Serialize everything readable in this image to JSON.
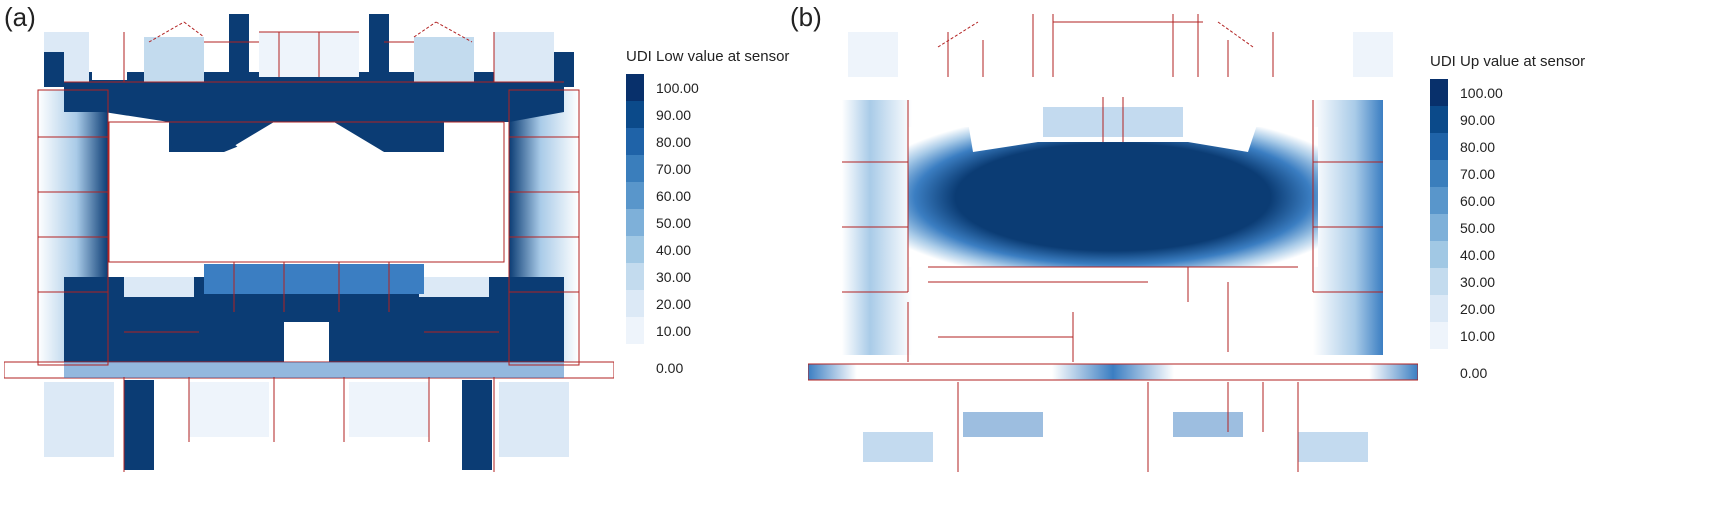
{
  "panel_a": {
    "label": "(a)",
    "legend_title": "UDI Low value at sensor"
  },
  "panel_b": {
    "label": "(b)",
    "legend_title": "UDI Up value at sensor"
  },
  "legend_ticks": [
    "100.00",
    "90.00",
    "80.00",
    "70.00",
    "60.00",
    "50.00",
    "40.00",
    "30.00",
    "20.00",
    "10.00",
    "0.00"
  ],
  "legend_colors": [
    "#08306b",
    "#0b4a8a",
    "#1f63a8",
    "#3a7ebc",
    "#5996cb",
    "#7eb0d9",
    "#a1c8e4",
    "#c3dbee",
    "#dce9f6",
    "#eef4fb"
  ],
  "colors": {
    "wall": "#b22222",
    "deep_blue": "#0b3c74",
    "mid_blue": "#3b7ec2",
    "light_blue": "#a9cbe8"
  }
}
